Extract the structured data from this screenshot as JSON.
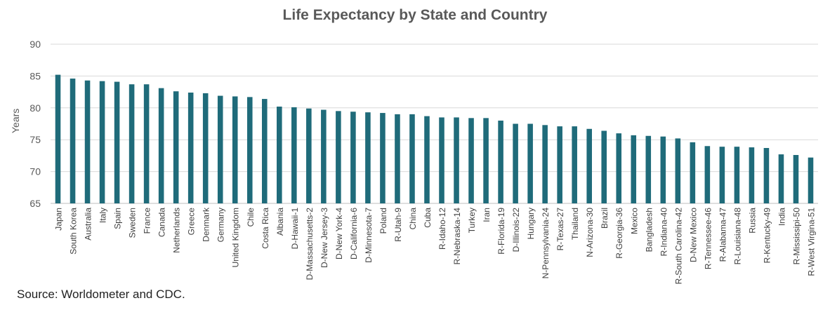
{
  "chart_data": {
    "type": "bar",
    "title": "Life Expectancy by State and Country",
    "xlabel": "",
    "ylabel": "Years",
    "ylim": [
      65,
      90
    ],
    "yticks": [
      65,
      70,
      75,
      80,
      85,
      90
    ],
    "grid": true,
    "bar_color": "#1F6B7A",
    "categories": [
      "Japan",
      "South Korea",
      "Australia",
      "Italy",
      "Spain",
      "Sweden",
      "France",
      "Canada",
      "Netherlands",
      "Greece",
      "Denmark",
      "Germany",
      "United Kingdom",
      "Chile",
      "Costa Rica",
      "Albania",
      "D-Hawaii-1",
      "D-Massachusetts-2",
      "D-New Jersey-3",
      "D-New York-4",
      "D-California-6",
      "D-Minnesota-7",
      "Poland",
      "R-Utah-9",
      "China",
      "Cuba",
      "R-Idaho-12",
      "R-Nebraska-14",
      "Turkey",
      "Iran",
      "R-Florida-19",
      "D-Illinois-22",
      "Hungary",
      "N-Pennsylvania-24",
      "R-Texas-27",
      "Thailand",
      "N-Arizona-30",
      "Brazil",
      "R-Georgia-36",
      "Mexico",
      "Bangladesh",
      "R-Indiana-40",
      "R-South Carolina-42",
      "D-New Mexico",
      "R-Tennessee-46",
      "R-Alabama-47",
      "R-Louisiana-48",
      "Russia",
      "R-Kentucky-49",
      "India",
      "R-Mississipi-50",
      "R-West Virgina-51"
    ],
    "values": [
      85.2,
      84.6,
      84.3,
      84.2,
      84.1,
      83.7,
      83.7,
      83.1,
      82.6,
      82.4,
      82.3,
      81.9,
      81.8,
      81.7,
      81.4,
      80.2,
      80.1,
      79.9,
      79.7,
      79.5,
      79.4,
      79.3,
      79.2,
      79.0,
      79.0,
      78.7,
      78.5,
      78.5,
      78.4,
      78.4,
      78.0,
      77.5,
      77.5,
      77.3,
      77.1,
      77.1,
      76.7,
      76.4,
      76.0,
      75.7,
      75.6,
      75.5,
      75.2,
      74.6,
      74.0,
      73.9,
      73.9,
      73.8,
      73.7,
      72.7,
      72.6,
      72.2
    ]
  },
  "footer": {
    "source": "Source: Worldometer and CDC."
  }
}
